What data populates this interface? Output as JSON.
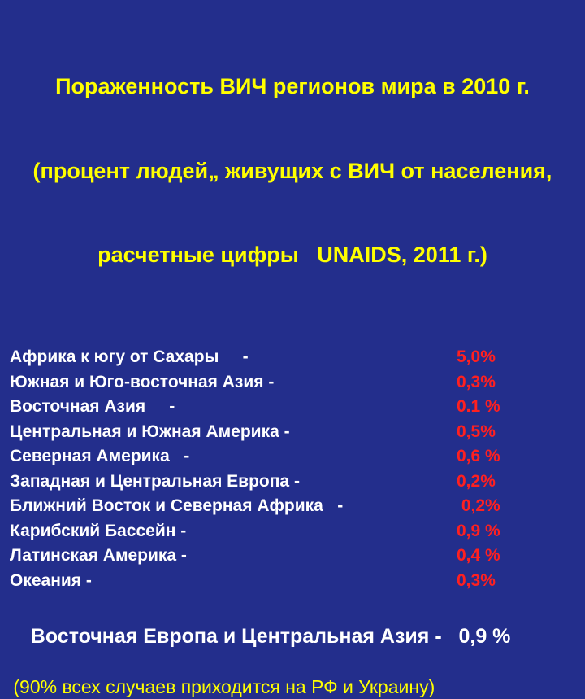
{
  "slide": {
    "title": {
      "line1": "Пораженность ВИЧ регионов мира в 2010 г.",
      "line2": "(процент людей„ живущих с ВИЧ от населения,",
      "line3": "расчетные цифры   UNAIDS, 2011 г.)"
    },
    "regions": [
      {
        "label": "Африка к югу от Сахары     -",
        "value": "5,0%"
      },
      {
        "label": "Южная и Юго-восточная Азия -",
        "value": "0,3%"
      },
      {
        "label": "Восточная Азия     -",
        "value": "0.1 %"
      },
      {
        "label": "Центральная и Южная Америка -",
        "value": "0,5%"
      },
      {
        "label": "Северная Америка   -",
        "value": "0,6 %"
      },
      {
        "label": "Западная и Центральная Европа -",
        "value": "0,2%"
      },
      {
        "label": "Ближний Восток и Северная Африка   -",
        "value": " 0,2%"
      },
      {
        "label": "Карибский Бассейн -",
        "value": "0,9 %"
      },
      {
        "label": "Латинская Америка -",
        "value": "0,4 %"
      },
      {
        "label": "Океания -",
        "value": "0,3%"
      }
    ],
    "summary": {
      "label": "Восточная Европа и Центральная Азия -   ",
      "value": "0,9 %"
    },
    "footnote": " (90% всех случаев приходится на РФ и Украину)",
    "colors": {
      "background": "#232E8C",
      "title_text": "#FFFF00",
      "body_text": "#FFFFFF",
      "value_text": "#FF2020",
      "footnote_text": "#FFFF00"
    }
  }
}
